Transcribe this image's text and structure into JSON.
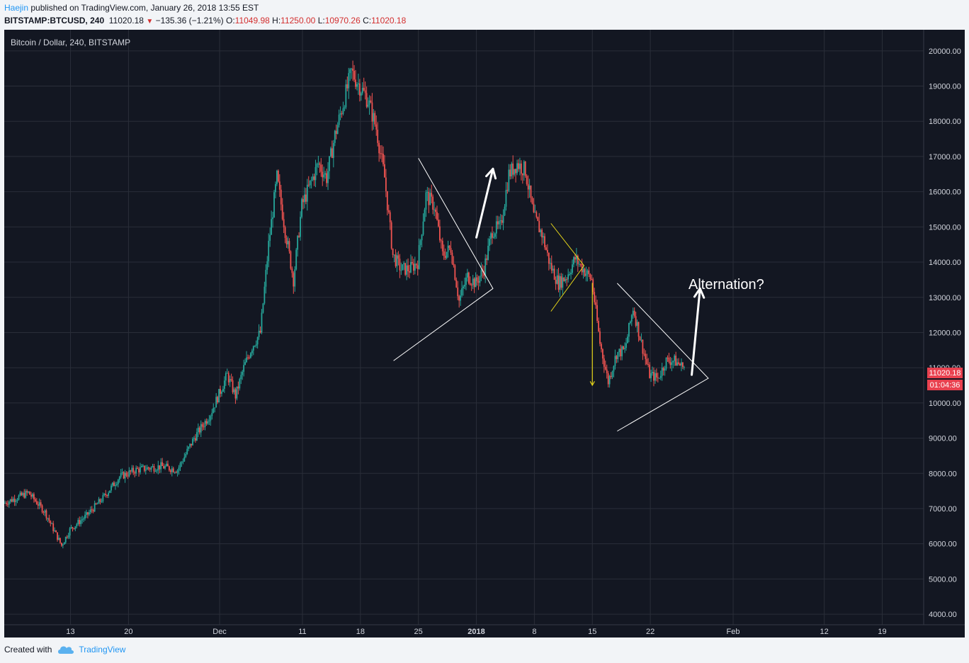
{
  "header": {
    "author": "Haejin",
    "published_text": "published on TradingView.com, January 26, 2018 13:55 EST",
    "symbol": "BITSTAMP:BTCUSD, 240",
    "last": "11020.18",
    "change": "−135.36 (−1.21%)",
    "o_label": "O:",
    "o_value": "11049.98",
    "h_label": "H:",
    "h_value": "11250.00",
    "l_label": "L:",
    "l_value": "10970.26",
    "c_label": "C:",
    "c_value": "11020.18"
  },
  "footer": {
    "created_with": "Created with",
    "brand": "TradingView"
  },
  "colors": {
    "background": "#131722",
    "grid": "#2a2e39",
    "up": "#26a69a",
    "down": "#ef5350",
    "price_tag": "#e9414f",
    "axis_text": "#d1d4dc",
    "trendline": "#ffffff",
    "yellow": "#e6d619"
  },
  "chart_data": {
    "type": "candlestick",
    "title": "Bitcoin / Dollar, 240, BITSTAMP",
    "price_tag": "11020.18",
    "countdown": "01:04:36",
    "ylim": [
      3700,
      20600
    ],
    "yticks": [
      4000,
      5000,
      6000,
      7000,
      8000,
      9000,
      10000,
      11000,
      12000,
      13000,
      14000,
      15000,
      16000,
      17000,
      18000,
      19000,
      20000
    ],
    "ytick_labels": [
      "4000.00",
      "5000.00",
      "6000.00",
      "7000.00",
      "8000.00",
      "9000.00",
      "10000.00",
      "11000.00",
      "12000.00",
      "13000.00",
      "14000.00",
      "15000.00",
      "16000.00",
      "17000.00",
      "18000.00",
      "19000.00",
      "20000.00"
    ],
    "xlim": [
      "2017-11-05",
      "2018-02-24"
    ],
    "xticks": [
      {
        "date": "2017-11-13",
        "label": "13"
      },
      {
        "date": "2017-11-20",
        "label": "20"
      },
      {
        "date": "2017-12-01",
        "label": "Dec"
      },
      {
        "date": "2017-12-11",
        "label": "11"
      },
      {
        "date": "2017-12-18",
        "label": "18"
      },
      {
        "date": "2017-12-25",
        "label": "25"
      },
      {
        "date": "2018-01-01",
        "label": "2018"
      },
      {
        "date": "2018-01-08",
        "label": "8"
      },
      {
        "date": "2018-01-15",
        "label": "15"
      },
      {
        "date": "2018-01-22",
        "label": "22"
      },
      {
        "date": "2018-02-01",
        "label": "Feb"
      },
      {
        "date": "2018-02-12",
        "label": "12"
      },
      {
        "date": "2018-02-19",
        "label": "19"
      }
    ],
    "price_path": [
      [
        "2017-11-05",
        7150
      ],
      [
        "2017-11-08",
        7450
      ],
      [
        "2017-11-10",
        6900
      ],
      [
        "2017-11-12",
        5950
      ],
      [
        "2017-11-13",
        6400
      ],
      [
        "2017-11-15",
        6800
      ],
      [
        "2017-11-17",
        7300
      ],
      [
        "2017-11-19",
        7900
      ],
      [
        "2017-11-21",
        8100
      ],
      [
        "2017-11-24",
        8200
      ],
      [
        "2017-11-26",
        8100
      ],
      [
        "2017-11-28",
        9000
      ],
      [
        "2017-11-30",
        9700
      ],
      [
        "2017-12-02",
        10800
      ],
      [
        "2017-12-03",
        10200
      ],
      [
        "2017-12-04",
        11000
      ],
      [
        "2017-12-05",
        11600
      ],
      [
        "2017-12-06",
        12000
      ],
      [
        "2017-12-07",
        14500
      ],
      [
        "2017-12-08",
        16400
      ],
      [
        "2017-12-09",
        14900
      ],
      [
        "2017-12-10",
        13500
      ],
      [
        "2017-12-11",
        15600
      ],
      [
        "2017-12-13",
        16800
      ],
      [
        "2017-12-14",
        16400
      ],
      [
        "2017-12-15",
        17600
      ],
      [
        "2017-12-16",
        18500
      ],
      [
        "2017-12-17",
        19400
      ],
      [
        "2017-12-18",
        19000
      ],
      [
        "2017-12-19",
        18600
      ],
      [
        "2017-12-20",
        17800
      ],
      [
        "2017-12-21",
        16400
      ],
      [
        "2017-12-22",
        14200
      ],
      [
        "2017-12-23",
        13800
      ],
      [
        "2017-12-24",
        13800
      ],
      [
        "2017-12-25",
        14000
      ],
      [
        "2017-12-26",
        15900
      ],
      [
        "2017-12-27",
        15600
      ],
      [
        "2017-12-28",
        14200
      ],
      [
        "2017-12-29",
        14400
      ],
      [
        "2017-12-30",
        12900
      ],
      [
        "2017-12-31",
        13600
      ],
      [
        "2018-01-01",
        13400
      ],
      [
        "2018-01-02",
        13800
      ],
      [
        "2018-01-03",
        14900
      ],
      [
        "2018-01-04",
        15000
      ],
      [
        "2018-01-05",
        16500
      ],
      [
        "2018-01-06",
        16800
      ],
      [
        "2018-01-07",
        16600
      ],
      [
        "2018-01-08",
        15300
      ],
      [
        "2018-01-09",
        14800
      ],
      [
        "2018-01-10",
        13900
      ],
      [
        "2018-01-11",
        13400
      ],
      [
        "2018-01-12",
        13600
      ],
      [
        "2018-01-13",
        14100
      ],
      [
        "2018-01-14",
        13800
      ],
      [
        "2018-01-15",
        13500
      ],
      [
        "2018-01-16",
        11700
      ],
      [
        "2018-01-17",
        10600
      ],
      [
        "2018-01-18",
        11400
      ],
      [
        "2018-01-19",
        11500
      ],
      [
        "2018-01-20",
        12700
      ],
      [
        "2018-01-21",
        11700
      ],
      [
        "2018-01-22",
        10800
      ],
      [
        "2018-01-23",
        10700
      ],
      [
        "2018-01-24",
        11200
      ],
      [
        "2018-01-25",
        11200
      ],
      [
        "2018-01-26",
        11020
      ]
    ],
    "annotations": {
      "text": "Alternation?",
      "white_triangle_1": [
        [
          "2017-12-22",
          11200
        ],
        [
          "2018-01-03",
          13250
        ],
        [
          "2017-12-25",
          16950
        ]
      ],
      "white_triangle_2": [
        [
          "2018-01-18",
          9200
        ],
        [
          "2018-01-29",
          10700
        ],
        [
          "2018-01-18",
          13400
        ]
      ],
      "yellow_triangle": [
        [
          "2018-01-10",
          12600
        ],
        [
          "2018-01-14",
          13900
        ],
        [
          "2018-01-10",
          15100
        ]
      ],
      "white_arrow_1": [
        [
          "2018-01-01",
          14700
        ],
        [
          "2018-01-03",
          16650
        ]
      ],
      "white_arrow_2": [
        [
          "2018-01-27",
          10800
        ],
        [
          "2018-01-28",
          13250
        ]
      ],
      "yellow_arrow": [
        [
          "2018-01-15",
          13400
        ],
        [
          "2018-01-15",
          10500
        ]
      ]
    }
  }
}
